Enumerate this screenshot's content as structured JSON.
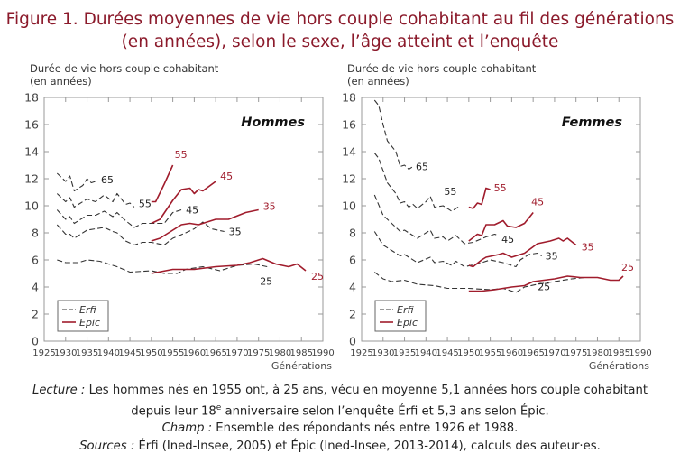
{
  "title_line1": "Figure 1. Durées moyennes de vie hors couple cohabitant au fil des générations",
  "title_line2": "(en années), selon le sexe, l’âge atteint et l’enquête",
  "colors": {
    "title": "#8b1a2b",
    "epic": "#a01c2c",
    "erfi": "#333333"
  },
  "notes": {
    "lecture_label": "Lecture :",
    "lecture_text1": " Les hommes nés en 1955 ont, à 25 ans, vécu en moyenne 5,1 années hors couple cohabitant",
    "lecture_text2a": "depuis leur 18",
    "lecture_sup": "e",
    "lecture_text2b": " anniversaire selon l’enquête Érfi et 5,3 ans selon Épic.",
    "champ_label": "Champ :",
    "champ_text": " Ensemble des répondants nés entre 1926 et 1988.",
    "sources_label": "Sources :",
    "sources_text": " Érfi (Ined-Insee, 2005) et Épic (Ined-Insee, 2013-2014), calculs des auteur·es."
  },
  "chart_data": [
    {
      "type": "line",
      "panel": "Hommes",
      "ylabel_line1": "Durée de vie hors couple cohabitant",
      "ylabel_line2": "(en années)",
      "xlabel": "Générations",
      "xlim": [
        1925,
        1990
      ],
      "ylim": [
        0,
        18
      ],
      "xticks": [
        1925,
        1930,
        1935,
        1940,
        1945,
        1950,
        1955,
        1960,
        1965,
        1970,
        1975,
        1980,
        1985,
        1990
      ],
      "yticks": [
        0,
        2,
        4,
        6,
        8,
        10,
        12,
        14,
        16,
        18
      ],
      "legend": {
        "placement": "bottom-left",
        "entries": [
          {
            "name": "Erfi",
            "style": "dashed"
          },
          {
            "name": "Epic",
            "style": "solid"
          }
        ]
      },
      "series": [
        {
          "survey": "Erfi",
          "label": "65",
          "points": [
            [
              1928,
              12.4
            ],
            [
              1930,
              11.8
            ],
            [
              1931,
              12.2
            ],
            [
              1932,
              11.1
            ],
            [
              1934,
              11.5
            ],
            [
              1935,
              12.0
            ],
            [
              1936,
              11.7
            ],
            [
              1937,
              11.8
            ]
          ]
        },
        {
          "survey": "Erfi",
          "label": "55",
          "points": [
            [
              1928,
              10.9
            ],
            [
              1930,
              10.3
            ],
            [
              1931,
              10.6
            ],
            [
              1932,
              9.9
            ],
            [
              1935,
              10.5
            ],
            [
              1937,
              10.3
            ],
            [
              1939,
              10.8
            ],
            [
              1941,
              10.3
            ],
            [
              1942,
              10.9
            ],
            [
              1944,
              10.1
            ],
            [
              1945,
              10.2
            ],
            [
              1946,
              9.9
            ]
          ]
        },
        {
          "survey": "Erfi",
          "label": "45",
          "points": [
            [
              1928,
              9.7
            ],
            [
              1930,
              9.0
            ],
            [
              1931,
              9.2
            ],
            [
              1932,
              8.7
            ],
            [
              1935,
              9.3
            ],
            [
              1937,
              9.3
            ],
            [
              1939,
              9.6
            ],
            [
              1941,
              9.2
            ],
            [
              1942,
              9.5
            ],
            [
              1944,
              8.9
            ],
            [
              1946,
              8.4
            ],
            [
              1948,
              8.7
            ],
            [
              1950,
              8.7
            ],
            [
              1953,
              8.7
            ],
            [
              1955,
              9.5
            ],
            [
              1957,
              9.7
            ]
          ]
        },
        {
          "survey": "Erfi",
          "label": "35",
          "points": [
            [
              1928,
              8.6
            ],
            [
              1930,
              7.9
            ],
            [
              1931,
              7.9
            ],
            [
              1932,
              7.6
            ],
            [
              1935,
              8.2
            ],
            [
              1939,
              8.4
            ],
            [
              1941,
              8.1
            ],
            [
              1942,
              8.0
            ],
            [
              1944,
              7.4
            ],
            [
              1946,
              7.1
            ],
            [
              1948,
              7.3
            ],
            [
              1950,
              7.3
            ],
            [
              1953,
              7.1
            ],
            [
              1955,
              7.6
            ],
            [
              1958,
              8.0
            ],
            [
              1960,
              8.3
            ],
            [
              1962,
              8.8
            ],
            [
              1964,
              8.3
            ],
            [
              1967,
              8.1
            ]
          ]
        },
        {
          "survey": "Erfi",
          "label": "25",
          "points": [
            [
              1928,
              6.0
            ],
            [
              1930,
              5.8
            ],
            [
              1933,
              5.8
            ],
            [
              1935,
              6.0
            ],
            [
              1938,
              5.9
            ],
            [
              1942,
              5.5
            ],
            [
              1945,
              5.1
            ],
            [
              1950,
              5.2
            ],
            [
              1953,
              5.0
            ],
            [
              1956,
              5.0
            ],
            [
              1958,
              5.3
            ],
            [
              1962,
              5.5
            ],
            [
              1966,
              5.2
            ],
            [
              1970,
              5.6
            ],
            [
              1974,
              5.7
            ],
            [
              1977,
              5.5
            ]
          ]
        },
        {
          "survey": "Epic",
          "label": "55",
          "points": [
            [
              1950,
              10.3
            ],
            [
              1951,
              10.3
            ],
            [
              1953,
              11.6
            ],
            [
              1955,
              13.0
            ]
          ]
        },
        {
          "survey": "Epic",
          "label": "45",
          "points": [
            [
              1950,
              8.7
            ],
            [
              1952,
              9.0
            ],
            [
              1955,
              10.4
            ],
            [
              1957,
              11.2
            ],
            [
              1959,
              11.3
            ],
            [
              1960,
              10.9
            ],
            [
              1961,
              11.2
            ],
            [
              1962,
              11.1
            ],
            [
              1965,
              11.8
            ]
          ]
        },
        {
          "survey": "Epic",
          "label": "35",
          "points": [
            [
              1950,
              7.4
            ],
            [
              1952,
              7.6
            ],
            [
              1955,
              8.2
            ],
            [
              1957,
              8.6
            ],
            [
              1959,
              8.7
            ],
            [
              1961,
              8.6
            ],
            [
              1965,
              9.0
            ],
            [
              1968,
              9.0
            ],
            [
              1972,
              9.5
            ],
            [
              1975,
              9.7
            ]
          ]
        },
        {
          "survey": "Epic",
          "label": "25",
          "points": [
            [
              1950,
              5.0
            ],
            [
              1955,
              5.3
            ],
            [
              1960,
              5.3
            ],
            [
              1965,
              5.5
            ],
            [
              1970,
              5.6
            ],
            [
              1973,
              5.8
            ],
            [
              1976,
              6.1
            ],
            [
              1979,
              5.7
            ],
            [
              1982,
              5.5
            ],
            [
              1984,
              5.7
            ],
            [
              1986,
              5.2
            ]
          ]
        }
      ]
    },
    {
      "type": "line",
      "panel": "Femmes",
      "ylabel_line1": "Durée de vie hors couple cohabitant",
      "ylabel_line2": "(en années)",
      "xlabel": "Générations",
      "xlim": [
        1925,
        1990
      ],
      "ylim": [
        0,
        18
      ],
      "xticks": [
        1925,
        1930,
        1935,
        1940,
        1945,
        1950,
        1955,
        1960,
        1965,
        1970,
        1975,
        1980,
        1985,
        1990
      ],
      "yticks": [
        0,
        2,
        4,
        6,
        8,
        10,
        12,
        14,
        16,
        18
      ],
      "legend": {
        "placement": "bottom-left",
        "entries": [
          {
            "name": "Erfi",
            "style": "dashed"
          },
          {
            "name": "Epic",
            "style": "solid"
          }
        ]
      },
      "series": [
        {
          "survey": "Erfi",
          "label": "65",
          "points": [
            [
              1928,
              17.8
            ],
            [
              1929,
              17.4
            ],
            [
              1930,
              16.0
            ],
            [
              1931,
              14.8
            ],
            [
              1933,
              14.0
            ],
            [
              1934,
              12.9
            ],
            [
              1935,
              13.0
            ],
            [
              1936,
              12.7
            ],
            [
              1937,
              12.9
            ]
          ]
        },
        {
          "survey": "Erfi",
          "label": "55",
          "points": [
            [
              1928,
              13.9
            ],
            [
              1929,
              13.5
            ],
            [
              1931,
              11.7
            ],
            [
              1933,
              10.9
            ],
            [
              1934,
              10.2
            ],
            [
              1935,
              10.3
            ],
            [
              1936,
              9.9
            ],
            [
              1937,
              10.1
            ],
            [
              1938,
              9.8
            ],
            [
              1940,
              10.3
            ],
            [
              1941,
              10.7
            ],
            [
              1942,
              9.9
            ],
            [
              1944,
              10.0
            ],
            [
              1946,
              9.6
            ],
            [
              1948,
              10.0
            ]
          ]
        },
        {
          "survey": "Erfi",
          "label": "45",
          "points": [
            [
              1928,
              10.8
            ],
            [
              1930,
              9.3
            ],
            [
              1932,
              8.7
            ],
            [
              1934,
              8.1
            ],
            [
              1935,
              8.2
            ],
            [
              1938,
              7.6
            ],
            [
              1941,
              8.2
            ],
            [
              1942,
              7.6
            ],
            [
              1944,
              7.7
            ],
            [
              1945,
              7.4
            ],
            [
              1947,
              7.8
            ],
            [
              1949,
              7.2
            ],
            [
              1951,
              7.3
            ],
            [
              1954,
              7.7
            ],
            [
              1956,
              7.9
            ],
            [
              1957,
              7.8
            ]
          ]
        },
        {
          "survey": "Erfi",
          "label": "35",
          "points": [
            [
              1928,
              8.1
            ],
            [
              1930,
              7.1
            ],
            [
              1932,
              6.7
            ],
            [
              1934,
              6.3
            ],
            [
              1935,
              6.4
            ],
            [
              1938,
              5.8
            ],
            [
              1941,
              6.2
            ],
            [
              1942,
              5.8
            ],
            [
              1944,
              5.9
            ],
            [
              1946,
              5.6
            ],
            [
              1947,
              5.9
            ],
            [
              1949,
              5.5
            ],
            [
              1952,
              5.7
            ],
            [
              1955,
              6.0
            ],
            [
              1958,
              5.8
            ],
            [
              1961,
              5.5
            ],
            [
              1962,
              6.0
            ],
            [
              1964,
              6.4
            ],
            [
              1966,
              6.5
            ],
            [
              1967,
              6.3
            ]
          ]
        },
        {
          "survey": "Erfi",
          "label": "25",
          "points": [
            [
              1928,
              5.1
            ],
            [
              1930,
              4.6
            ],
            [
              1932,
              4.4
            ],
            [
              1935,
              4.5
            ],
            [
              1938,
              4.2
            ],
            [
              1942,
              4.1
            ],
            [
              1945,
              3.9
            ],
            [
              1950,
              3.9
            ],
            [
              1955,
              3.8
            ],
            [
              1958,
              3.9
            ],
            [
              1961,
              3.6
            ],
            [
              1963,
              4.0
            ],
            [
              1966,
              4.2
            ],
            [
              1970,
              4.4
            ],
            [
              1974,
              4.6
            ],
            [
              1977,
              4.7
            ]
          ]
        },
        {
          "survey": "Epic",
          "label": "55",
          "points": [
            [
              1950,
              9.9
            ],
            [
              1951,
              9.8
            ],
            [
              1952,
              10.2
            ],
            [
              1953,
              10.1
            ],
            [
              1954,
              11.3
            ],
            [
              1955,
              11.2
            ]
          ]
        },
        {
          "survey": "Epic",
          "label": "45",
          "points": [
            [
              1950,
              7.4
            ],
            [
              1952,
              7.9
            ],
            [
              1953,
              7.8
            ],
            [
              1954,
              8.6
            ],
            [
              1956,
              8.6
            ],
            [
              1958,
              8.9
            ],
            [
              1959,
              8.5
            ],
            [
              1961,
              8.4
            ],
            [
              1963,
              8.7
            ],
            [
              1965,
              9.5
            ]
          ]
        },
        {
          "survey": "Epic",
          "label": "35",
          "points": [
            [
              1950,
              5.6
            ],
            [
              1951,
              5.5
            ],
            [
              1953,
              6.0
            ],
            [
              1954,
              6.2
            ],
            [
              1957,
              6.4
            ],
            [
              1958,
              6.5
            ],
            [
              1960,
              6.2
            ],
            [
              1963,
              6.5
            ],
            [
              1966,
              7.2
            ],
            [
              1969,
              7.4
            ],
            [
              1971,
              7.6
            ],
            [
              1972,
              7.4
            ],
            [
              1973,
              7.6
            ],
            [
              1975,
              7.1
            ]
          ]
        },
        {
          "survey": "Epic",
          "label": "25",
          "points": [
            [
              1950,
              3.7
            ],
            [
              1953,
              3.7
            ],
            [
              1956,
              3.8
            ],
            [
              1960,
              4.0
            ],
            [
              1963,
              4.1
            ],
            [
              1965,
              4.4
            ],
            [
              1970,
              4.6
            ],
            [
              1973,
              4.8
            ],
            [
              1976,
              4.7
            ],
            [
              1980,
              4.7
            ],
            [
              1983,
              4.5
            ],
            [
              1985,
              4.5
            ],
            [
              1986,
              4.8
            ]
          ]
        }
      ]
    }
  ]
}
